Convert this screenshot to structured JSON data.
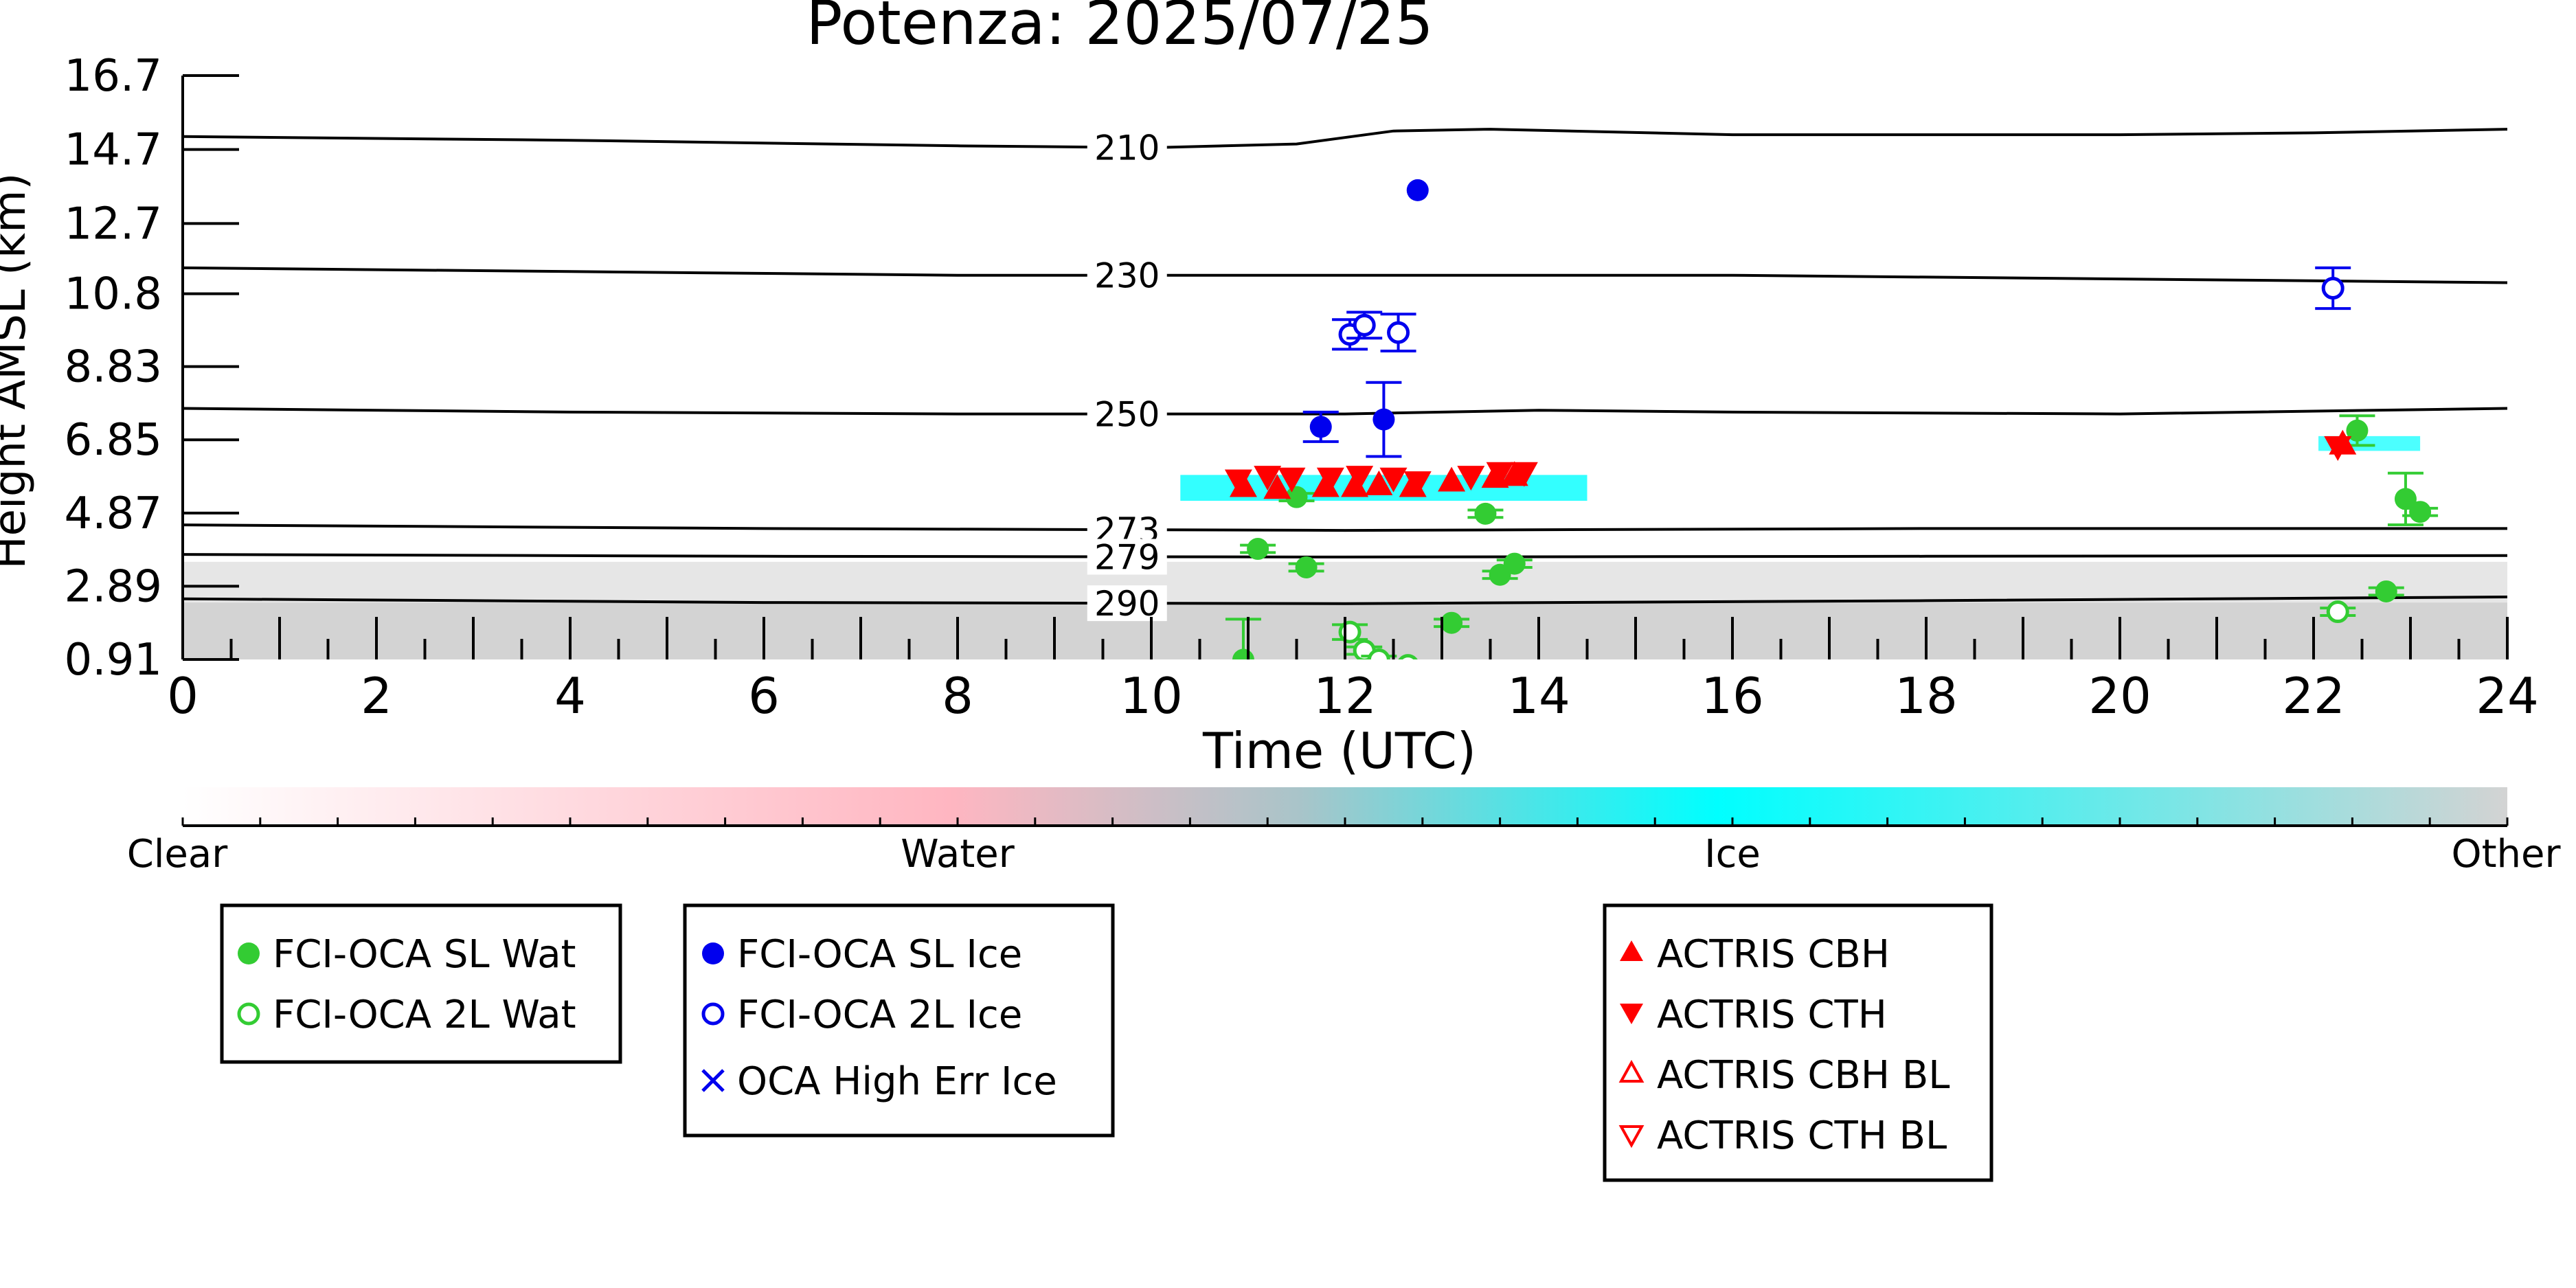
{
  "chart_data": {
    "type": "scatter",
    "title": "Potenza: 2025/07/25",
    "xlabel": "Time (UTC)",
    "ylabel": "Height AMSL (km)",
    "xlim": [
      0,
      24
    ],
    "ylim": [
      0.91,
      16.7
    ],
    "x_ticks": [
      0,
      2,
      4,
      6,
      8,
      10,
      12,
      14,
      16,
      18,
      20,
      22,
      24
    ],
    "y_ticks": [
      "0.91",
      "2.89",
      "4.87",
      "6.85",
      "8.83",
      "10.8",
      "12.7",
      "14.7",
      "16.7"
    ],
    "y_tick_values": [
      0.91,
      2.89,
      4.87,
      6.85,
      8.83,
      10.8,
      12.7,
      14.7,
      16.7
    ],
    "temperature_contours": [
      {
        "label": "210",
        "label_x": 9.75,
        "points": [
          [
            0,
            15.05
          ],
          [
            4,
            14.95
          ],
          [
            8,
            14.8
          ],
          [
            10,
            14.75
          ],
          [
            11.5,
            14.85
          ],
          [
            12.5,
            15.2
          ],
          [
            13.5,
            15.25
          ],
          [
            16,
            15.1
          ],
          [
            20,
            15.1
          ],
          [
            22,
            15.15
          ],
          [
            23,
            15.2
          ],
          [
            24,
            15.25
          ]
        ]
      },
      {
        "label": "230",
        "label_x": 9.75,
        "points": [
          [
            0,
            11.5
          ],
          [
            4,
            11.4
          ],
          [
            8,
            11.3
          ],
          [
            12,
            11.3
          ],
          [
            16,
            11.3
          ],
          [
            20,
            11.2
          ],
          [
            24,
            11.1
          ]
        ]
      },
      {
        "label": "250",
        "label_x": 9.75,
        "points": [
          [
            0,
            7.7
          ],
          [
            4,
            7.6
          ],
          [
            8,
            7.55
          ],
          [
            12,
            7.55
          ],
          [
            14,
            7.65
          ],
          [
            16,
            7.6
          ],
          [
            20,
            7.55
          ],
          [
            24,
            7.7
          ]
        ]
      },
      {
        "label": "273",
        "label_x": 9.75,
        "points": [
          [
            0,
            4.55
          ],
          [
            6,
            4.45
          ],
          [
            12,
            4.4
          ],
          [
            18,
            4.45
          ],
          [
            24,
            4.45
          ]
        ]
      },
      {
        "label": "279",
        "label_x": 9.75,
        "points": [
          [
            0,
            3.75
          ],
          [
            6,
            3.7
          ],
          [
            12,
            3.68
          ],
          [
            18,
            3.7
          ],
          [
            24,
            3.72
          ]
        ]
      },
      {
        "label": "290",
        "label_x": 9.75,
        "points": [
          [
            0,
            2.55
          ],
          [
            6,
            2.45
          ],
          [
            12,
            2.42
          ],
          [
            18,
            2.5
          ],
          [
            24,
            2.6
          ]
        ]
      }
    ],
    "colorbar": {
      "labels": [
        "Clear",
        "Water",
        "Ice",
        "Other"
      ],
      "colors": [
        "#ffffff",
        "#ffb6c1",
        "#00ffff",
        "#d3d3d3"
      ]
    },
    "series": [
      {
        "name": "FCI-OCA SL Wat",
        "marker": "filled-circle",
        "color": "#33cc33",
        "points": [
          [
            11.1,
            3.9
          ],
          [
            11.5,
            5.3
          ],
          [
            11.6,
            3.4
          ],
          [
            10.95,
            0.9
          ],
          [
            13.1,
            1.9
          ],
          [
            13.45,
            4.85
          ],
          [
            13.6,
            3.2
          ],
          [
            13.75,
            3.5
          ],
          [
            22.45,
            7.1
          ],
          [
            22.75,
            2.75
          ],
          [
            22.95,
            5.25
          ],
          [
            23.1,
            4.9
          ]
        ],
        "err": [
          0.1,
          0.1,
          0.1,
          1.1,
          0.1,
          0.1,
          0.1,
          0.1,
          0.4,
          0.1,
          0.7,
          0.1
        ]
      },
      {
        "name": "FCI-OCA 2L Wat",
        "marker": "open-circle",
        "color": "#33cc33",
        "points": [
          [
            12.05,
            1.65
          ],
          [
            12.2,
            1.15
          ],
          [
            12.35,
            0.9
          ],
          [
            12.65,
            0.75
          ],
          [
            22.25,
            2.2
          ]
        ],
        "err": [
          0.2,
          0.1,
          0.1,
          0.1,
          0.1
        ]
      },
      {
        "name": "FCI-OCA SL Ice",
        "marker": "filled-circle",
        "color": "#0000ee",
        "points": [
          [
            11.75,
            7.2
          ],
          [
            12.4,
            7.4
          ],
          [
            12.75,
            13.6
          ]
        ],
        "err": [
          0.4,
          1.0,
          0.0
        ]
      },
      {
        "name": "FCI-OCA 2L Ice",
        "marker": "open-circle",
        "color": "#0000ee",
        "points": [
          [
            12.05,
            9.7
          ],
          [
            12.2,
            9.95
          ],
          [
            12.55,
            9.75
          ],
          [
            22.2,
            10.95
          ]
        ],
        "err": [
          0.4,
          0.35,
          0.5,
          0.55
        ]
      },
      {
        "name": "OCA High Err Ice",
        "marker": "x",
        "color": "#0000ee",
        "points": []
      },
      {
        "name": "ACTRIS CBH",
        "marker": "triangle-up",
        "color": "#ff0000",
        "points": [
          [
            10.95,
            5.6
          ],
          [
            11.3,
            5.55
          ],
          [
            11.8,
            5.6
          ],
          [
            12.1,
            5.6
          ],
          [
            12.35,
            5.65
          ],
          [
            12.7,
            5.6
          ],
          [
            13.1,
            5.75
          ],
          [
            13.55,
            5.85
          ],
          [
            13.75,
            5.9
          ],
          [
            22.3,
            6.75
          ]
        ]
      },
      {
        "name": "ACTRIS CTH",
        "marker": "triangle-down",
        "color": "#ff0000",
        "points": [
          [
            10.9,
            5.75
          ],
          [
            11.2,
            5.85
          ],
          [
            11.45,
            5.8
          ],
          [
            11.85,
            5.8
          ],
          [
            12.15,
            5.85
          ],
          [
            12.5,
            5.8
          ],
          [
            12.75,
            5.7
          ],
          [
            13.3,
            5.85
          ],
          [
            13.6,
            5.95
          ],
          [
            13.85,
            5.95
          ],
          [
            22.25,
            6.65
          ]
        ]
      },
      {
        "name": "ACTRIS CBH BL",
        "marker": "open-triangle-up",
        "color": "#ff0000",
        "points": []
      },
      {
        "name": "ACTRIS CTH BL",
        "marker": "open-triangle-down",
        "color": "#ff0000",
        "points": []
      }
    ],
    "legends": [
      {
        "entries": [
          "FCI-OCA SL Wat",
          "FCI-OCA 2L Wat"
        ]
      },
      {
        "entries": [
          "FCI-OCA SL Ice",
          "FCI-OCA 2L Ice",
          "OCA High Err Ice"
        ]
      },
      {
        "entries": [
          "ACTRIS CBH",
          "ACTRIS CTH",
          "ACTRIS CBH BL",
          "ACTRIS CTH BL"
        ]
      }
    ]
  }
}
